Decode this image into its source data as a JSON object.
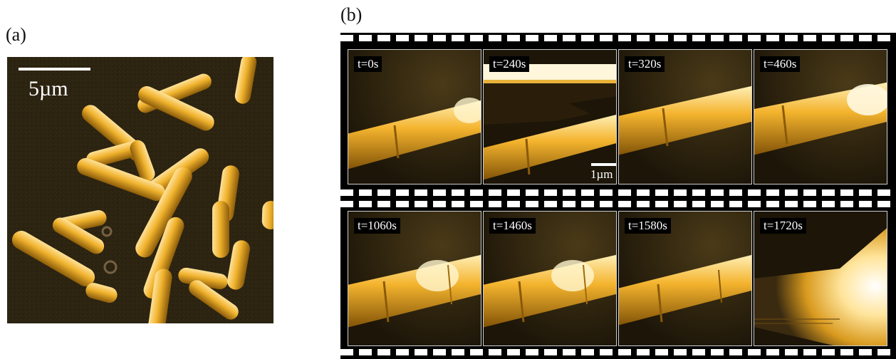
{
  "panel_a": {
    "label": "(a)",
    "scale_bar": "5µm"
  },
  "panel_b": {
    "label": "(b)",
    "scale_bar": "1µm",
    "frames": [
      {
        "time": "t=0s"
      },
      {
        "time": "t=240s"
      },
      {
        "time": "t=320s"
      },
      {
        "time": "t=460s"
      },
      {
        "time": "t=1060s"
      },
      {
        "time": "t=1460s"
      },
      {
        "time": "t=1580s"
      },
      {
        "time": "t=1720s"
      }
    ]
  },
  "colors": {
    "background_dark": "#2a2210",
    "cell_highlight": "#ffe9a0",
    "cell_body": "#e8a21a",
    "cell_edge": "#8a5a08"
  }
}
